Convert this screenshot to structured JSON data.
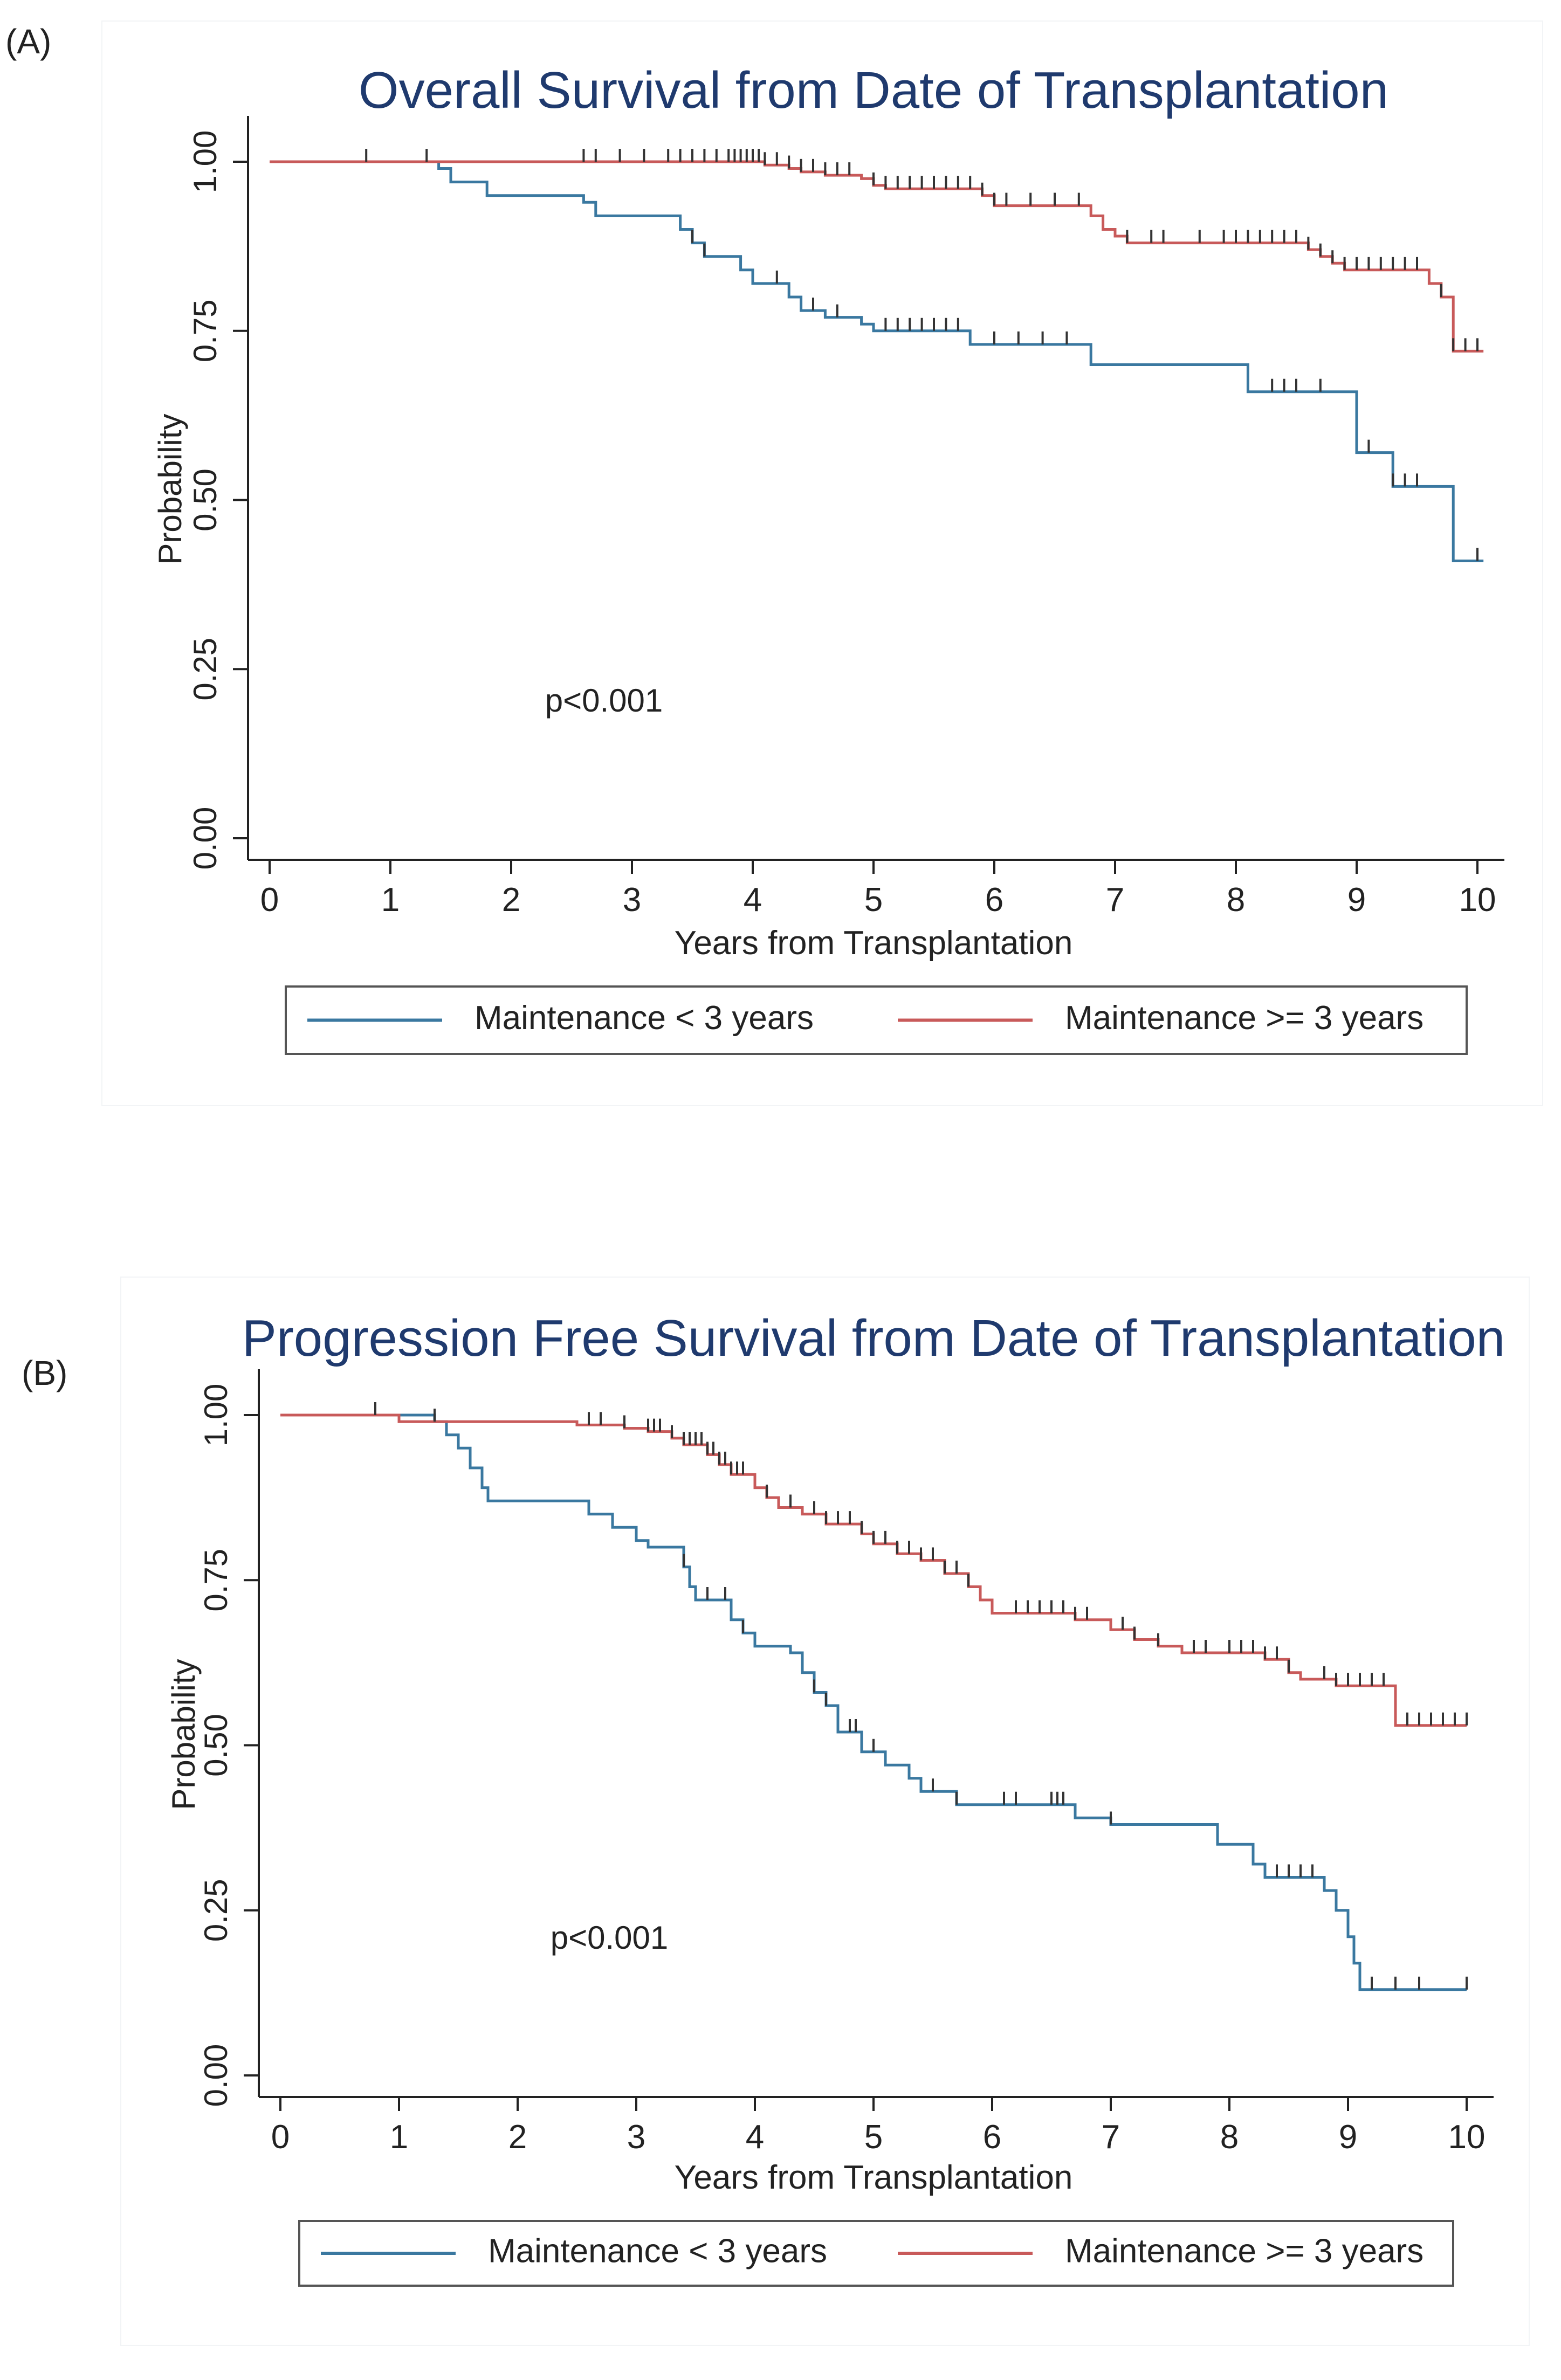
{
  "panels": {
    "a": {
      "label": "(A)"
    },
    "b": {
      "label": "(B)"
    }
  },
  "colors": {
    "short": "#3a78a0",
    "long": "#c85a5a",
    "title": "#1f3a6e",
    "axis": "#222222"
  },
  "chart_data": [
    {
      "type": "line",
      "title": "Overall Survival from Date of Transplantation",
      "xlabel": "Years from Transplantation",
      "ylabel": "Probability",
      "xlim": [
        0,
        10
      ],
      "ylim": [
        0,
        1
      ],
      "x_ticks": [
        "0",
        "1",
        "2",
        "3",
        "4",
        "5",
        "6",
        "7",
        "8",
        "9",
        "10"
      ],
      "y_ticks": [
        "0.00",
        "0.25",
        "0.50",
        "0.75",
        "1.00"
      ],
      "annotation": "p<0.001",
      "legend": "bottom",
      "series": [
        {
          "name": "Maintenance < 3 years",
          "color": "#3a78a0",
          "steps": [
            [
              0,
              1.0
            ],
            [
              1.4,
              0.99
            ],
            [
              1.5,
              0.97
            ],
            [
              1.8,
              0.95
            ],
            [
              2.6,
              0.94
            ],
            [
              2.7,
              0.92
            ],
            [
              3.4,
              0.9
            ],
            [
              3.5,
              0.88
            ],
            [
              3.6,
              0.86
            ],
            [
              3.9,
              0.84
            ],
            [
              4.0,
              0.82
            ],
            [
              4.3,
              0.8
            ],
            [
              4.4,
              0.78
            ],
            [
              4.6,
              0.77
            ],
            [
              4.9,
              0.76
            ],
            [
              5.0,
              0.75
            ],
            [
              5.8,
              0.73
            ],
            [
              6.8,
              0.7
            ],
            [
              8.1,
              0.66
            ],
            [
              9.0,
              0.57
            ],
            [
              9.3,
              0.52
            ],
            [
              9.8,
              0.41
            ],
            [
              10.05,
              0.41
            ]
          ],
          "censor": [
            3.5,
            3.6,
            4.2,
            4.5,
            4.7,
            5.1,
            5.2,
            5.3,
            5.4,
            5.5,
            5.6,
            5.7,
            6.0,
            6.2,
            6.4,
            6.6,
            8.3,
            8.4,
            8.5,
            8.7,
            9.1,
            9.3,
            9.4,
            9.5,
            10.0
          ]
        },
        {
          "name": "Maintenance >= 3 years",
          "color": "#c85a5a",
          "steps": [
            [
              0,
              1.0
            ],
            [
              4.1,
              0.995
            ],
            [
              4.3,
              0.99
            ],
            [
              4.4,
              0.985
            ],
            [
              4.6,
              0.98
            ],
            [
              4.9,
              0.975
            ],
            [
              5.0,
              0.965
            ],
            [
              5.1,
              0.96
            ],
            [
              5.9,
              0.95
            ],
            [
              6.0,
              0.935
            ],
            [
              6.8,
              0.92
            ],
            [
              6.9,
              0.9
            ],
            [
              7.0,
              0.89
            ],
            [
              7.1,
              0.88
            ],
            [
              8.6,
              0.87
            ],
            [
              8.7,
              0.86
            ],
            [
              8.8,
              0.85
            ],
            [
              8.9,
              0.84
            ],
            [
              9.6,
              0.82
            ],
            [
              9.7,
              0.8
            ],
            [
              9.8,
              0.72
            ],
            [
              10.05,
              0.72
            ]
          ],
          "censor": [
            0.8,
            1.3,
            2.6,
            2.7,
            2.9,
            3.1,
            3.3,
            3.4,
            3.5,
            3.6,
            3.7,
            3.8,
            3.85,
            3.9,
            3.95,
            4.0,
            4.05,
            4.1,
            4.2,
            4.3,
            4.4,
            4.5,
            4.6,
            4.7,
            4.8,
            5.0,
            5.1,
            5.2,
            5.3,
            5.4,
            5.5,
            5.6,
            5.7,
            5.8,
            5.9,
            6.0,
            6.1,
            6.3,
            6.5,
            6.7,
            7.1,
            7.3,
            7.4,
            7.7,
            7.9,
            8.0,
            8.1,
            8.2,
            8.3,
            8.4,
            8.5,
            8.6,
            8.7,
            8.8,
            8.9,
            9.0,
            9.1,
            9.2,
            9.3,
            9.4,
            9.5,
            9.7,
            9.8,
            9.9,
            10.0
          ]
        }
      ]
    },
    {
      "type": "line",
      "title": "Progression Free Survival from Date of Transplantation",
      "xlabel": "Years from Transplantation",
      "ylabel": "Probability",
      "xlim": [
        0,
        10
      ],
      "ylim": [
        0,
        1
      ],
      "x_ticks": [
        "0",
        "1",
        "2",
        "3",
        "4",
        "5",
        "6",
        "7",
        "8",
        "9",
        "10"
      ],
      "y_ticks": [
        "0.00",
        "0.25",
        "0.50",
        "0.75",
        "1.00"
      ],
      "annotation": "p<0.001",
      "legend": "bottom",
      "series": [
        {
          "name": "Maintenance < 3 years",
          "color": "#3a78a0",
          "steps": [
            [
              0,
              1.0
            ],
            [
              1.3,
              0.99
            ],
            [
              1.4,
              0.97
            ],
            [
              1.5,
              0.95
            ],
            [
              1.6,
              0.92
            ],
            [
              1.7,
              0.89
            ],
            [
              1.75,
              0.87
            ],
            [
              2.6,
              0.85
            ],
            [
              2.8,
              0.83
            ],
            [
              3.0,
              0.81
            ],
            [
              3.1,
              0.8
            ],
            [
              3.4,
              0.77
            ],
            [
              3.45,
              0.74
            ],
            [
              3.5,
              0.72
            ],
            [
              3.8,
              0.69
            ],
            [
              3.9,
              0.67
            ],
            [
              4.0,
              0.65
            ],
            [
              4.3,
              0.64
            ],
            [
              4.4,
              0.61
            ],
            [
              4.5,
              0.58
            ],
            [
              4.6,
              0.56
            ],
            [
              4.7,
              0.52
            ],
            [
              4.9,
              0.49
            ],
            [
              5.1,
              0.47
            ],
            [
              5.3,
              0.45
            ],
            [
              5.4,
              0.43
            ],
            [
              5.7,
              0.41
            ],
            [
              6.7,
              0.39
            ],
            [
              7.0,
              0.38
            ],
            [
              7.9,
              0.35
            ],
            [
              8.2,
              0.32
            ],
            [
              8.3,
              0.3
            ],
            [
              8.8,
              0.28
            ],
            [
              8.9,
              0.25
            ],
            [
              9.0,
              0.21
            ],
            [
              9.05,
              0.17
            ],
            [
              9.1,
              0.13
            ],
            [
              10.0,
              0.13
            ]
          ],
          "censor": [
            0.8,
            1.3,
            3.4,
            3.6,
            3.75,
            3.9,
            4.5,
            4.6,
            4.8,
            4.85,
            5.0,
            5.5,
            5.7,
            6.1,
            6.2,
            6.5,
            6.55,
            6.6,
            7.0,
            8.4,
            8.5,
            8.6,
            8.7,
            9.2,
            9.4,
            9.6,
            10.0
          ]
        },
        {
          "name": "Maintenance >= 3 years",
          "color": "#c85a5a",
          "steps": [
            [
              0,
              1.0
            ],
            [
              1.0,
              0.99
            ],
            [
              2.5,
              0.985
            ],
            [
              2.9,
              0.98
            ],
            [
              3.1,
              0.975
            ],
            [
              3.3,
              0.965
            ],
            [
              3.4,
              0.955
            ],
            [
              3.6,
              0.94
            ],
            [
              3.7,
              0.925
            ],
            [
              3.8,
              0.91
            ],
            [
              4.0,
              0.89
            ],
            [
              4.1,
              0.875
            ],
            [
              4.2,
              0.86
            ],
            [
              4.4,
              0.85
            ],
            [
              4.6,
              0.835
            ],
            [
              4.9,
              0.82
            ],
            [
              5.0,
              0.805
            ],
            [
              5.2,
              0.79
            ],
            [
              5.4,
              0.78
            ],
            [
              5.6,
              0.76
            ],
            [
              5.8,
              0.74
            ],
            [
              5.9,
              0.72
            ],
            [
              6.0,
              0.7
            ],
            [
              6.7,
              0.69
            ],
            [
              7.0,
              0.675
            ],
            [
              7.2,
              0.66
            ],
            [
              7.4,
              0.65
            ],
            [
              7.6,
              0.64
            ],
            [
              8.3,
              0.63
            ],
            [
              8.5,
              0.61
            ],
            [
              8.6,
              0.6
            ],
            [
              8.9,
              0.59
            ],
            [
              9.4,
              0.53
            ],
            [
              10.0,
              0.53
            ]
          ],
          "censor": [
            0.8,
            1.3,
            2.6,
            2.7,
            2.9,
            3.1,
            3.15,
            3.2,
            3.3,
            3.4,
            3.45,
            3.5,
            3.55,
            3.6,
            3.65,
            3.7,
            3.75,
            3.8,
            3.85,
            3.9,
            4.1,
            4.3,
            4.5,
            4.6,
            4.7,
            4.8,
            4.9,
            5.0,
            5.1,
            5.2,
            5.3,
            5.4,
            5.5,
            5.6,
            5.7,
            5.8,
            6.2,
            6.3,
            6.4,
            6.5,
            6.6,
            6.7,
            6.8,
            7.1,
            7.2,
            7.4,
            7.7,
            7.8,
            8.0,
            8.1,
            8.2,
            8.3,
            8.4,
            8.5,
            8.8,
            8.9,
            9.0,
            9.1,
            9.2,
            9.3,
            9.5,
            9.6,
            9.7,
            9.8,
            9.9,
            10.0
          ]
        }
      ]
    }
  ]
}
